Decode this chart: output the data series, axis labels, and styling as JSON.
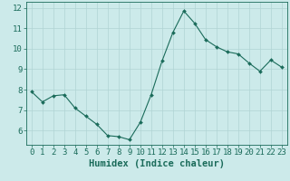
{
  "x": [
    0,
    1,
    2,
    3,
    4,
    5,
    6,
    7,
    8,
    9,
    10,
    11,
    12,
    13,
    14,
    15,
    16,
    17,
    18,
    19,
    20,
    21,
    22,
    23
  ],
  "y": [
    7.9,
    7.4,
    7.7,
    7.75,
    7.1,
    6.7,
    6.3,
    5.75,
    5.7,
    5.55,
    6.4,
    7.75,
    9.4,
    10.8,
    11.85,
    11.25,
    10.45,
    10.1,
    9.85,
    9.75,
    9.3,
    8.9,
    9.45,
    9.1
  ],
  "line_color": "#1a6b5a",
  "marker": "D",
  "marker_size": 2.0,
  "bg_color": "#cceaea",
  "grid_color": "#b0d4d4",
  "axis_color": "#1a6b5a",
  "tick_color": "#1a6b5a",
  "xlabel": "Humidex (Indice chaleur)",
  "xlabel_fontsize": 7.5,
  "ylim": [
    5.3,
    12.3
  ],
  "yticks": [
    6,
    7,
    8,
    9,
    10,
    11,
    12
  ],
  "xlim": [
    -0.5,
    23.5
  ],
  "xticks": [
    0,
    1,
    2,
    3,
    4,
    5,
    6,
    7,
    8,
    9,
    10,
    11,
    12,
    13,
    14,
    15,
    16,
    17,
    18,
    19,
    20,
    21,
    22,
    23
  ],
  "tick_fontsize": 6.5
}
